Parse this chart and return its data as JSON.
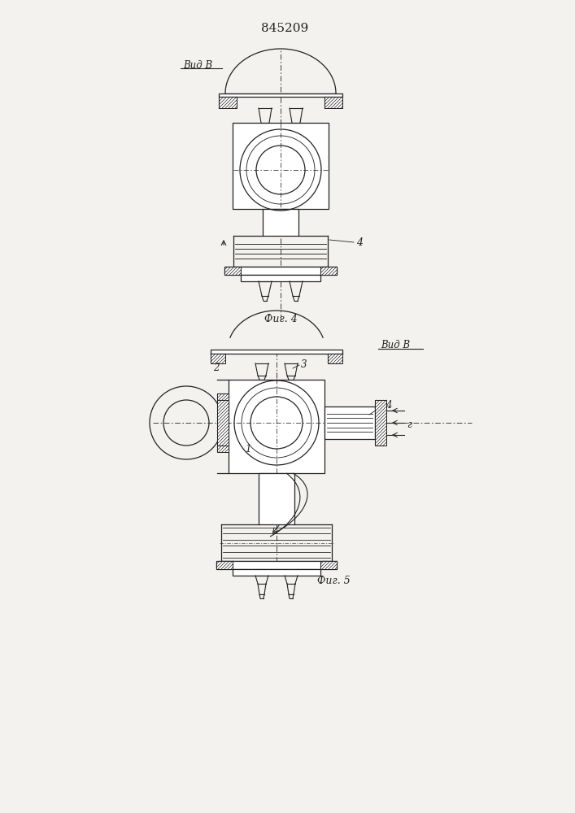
{
  "title": "845209",
  "fig4_label": "Фиг. 4",
  "fig5_label": "Фиг. 5",
  "vid_b_label": "Вид В",
  "label_4": "4",
  "label_1": "1",
  "label_2": "2",
  "label_3": "3",
  "label_r": "г",
  "line_color": "#222222",
  "bg_color": "#f4f2ef",
  "lw": 0.9,
  "tlw": 0.55
}
